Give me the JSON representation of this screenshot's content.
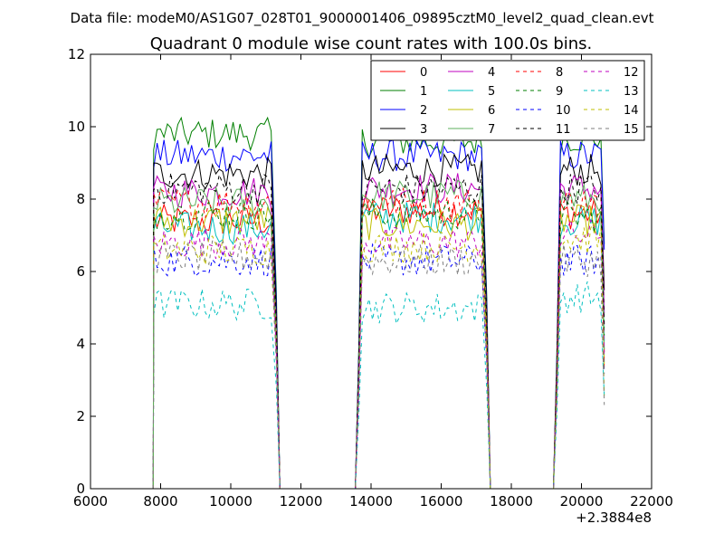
{
  "figure": {
    "suptitle": "Data file: modeM0/AS1G07_028T01_9000001406_09895cztM0_level2_quad_clean.evt",
    "title": "Quadrant 0 module wise count rates with 100.0s bins.",
    "x_offset_label": "+2.3884e8"
  },
  "chart_data": {
    "type": "line",
    "title": "Quadrant 0 module wise count rates with 100.0s bins.",
    "xlabel": "",
    "ylabel": "",
    "xlim": [
      6000,
      22000
    ],
    "ylim": [
      0,
      12
    ],
    "x_ticks": [
      "6000",
      "8000",
      "10000",
      "12000",
      "14000",
      "16000",
      "18000",
      "20000",
      "22000"
    ],
    "y_ticks": [
      "0",
      "2",
      "4",
      "6",
      "8",
      "10",
      "12"
    ],
    "x_offset": "+2.3884e8",
    "legend_position": "upper-right",
    "segments": [
      {
        "start": 7800,
        "end": 11150,
        "steps": 34
      },
      {
        "start": 13750,
        "end": 17150,
        "steps": 35
      },
      {
        "start": 19400,
        "end": 20650,
        "steps": 13
      }
    ],
    "series": [
      {
        "name": "0",
        "color": "#ff0000",
        "style": "solid",
        "levels": [
          7.4,
          7.7,
          7.6
        ]
      },
      {
        "name": "1",
        "color": "#007f00",
        "style": "solid",
        "levels": [
          9.8,
          9.6,
          9.7
        ]
      },
      {
        "name": "2",
        "color": "#0000ff",
        "style": "solid",
        "levels": [
          9.2,
          9.2,
          9.2
        ]
      },
      {
        "name": "3",
        "color": "#000000",
        "style": "solid",
        "levels": [
          8.7,
          8.8,
          8.8
        ]
      },
      {
        "name": "4",
        "color": "#bf00bf",
        "style": "solid",
        "levels": [
          8.2,
          8.3,
          8.3
        ]
      },
      {
        "name": "5",
        "color": "#00bfbf",
        "style": "solid",
        "levels": [
          7.2,
          7.5,
          7.4
        ]
      },
      {
        "name": "6",
        "color": "#bfbf00",
        "style": "solid",
        "levels": [
          7.4,
          7.3,
          7.4
        ]
      },
      {
        "name": "7",
        "color": "#5daf5d",
        "style": "solid",
        "levels": [
          7.9,
          8.1,
          8.0
        ]
      },
      {
        "name": "8",
        "color": "#ff0000",
        "style": "dashed",
        "levels": [
          7.9,
          7.9,
          7.9
        ]
      },
      {
        "name": "9",
        "color": "#007f00",
        "style": "dashed",
        "levels": [
          7.6,
          7.6,
          7.5
        ]
      },
      {
        "name": "10",
        "color": "#0000ff",
        "style": "dashed",
        "levels": [
          6.3,
          6.3,
          6.3
        ]
      },
      {
        "name": "11",
        "color": "#000000",
        "style": "dashed",
        "levels": [
          8.3,
          8.3,
          8.3
        ]
      },
      {
        "name": "12",
        "color": "#bf00bf",
        "style": "dashed",
        "levels": [
          6.8,
          6.8,
          7.0
        ]
      },
      {
        "name": "13",
        "color": "#00bfbf",
        "style": "dashed",
        "levels": [
          5.1,
          5.0,
          5.3
        ]
      },
      {
        "name": "14",
        "color": "#bfbf00",
        "style": "dashed",
        "levels": [
          6.6,
          6.7,
          6.9
        ]
      },
      {
        "name": "15",
        "color": "#7f7f7f",
        "style": "dashed",
        "levels": [
          6.4,
          6.3,
          6.3
        ]
      }
    ]
  }
}
